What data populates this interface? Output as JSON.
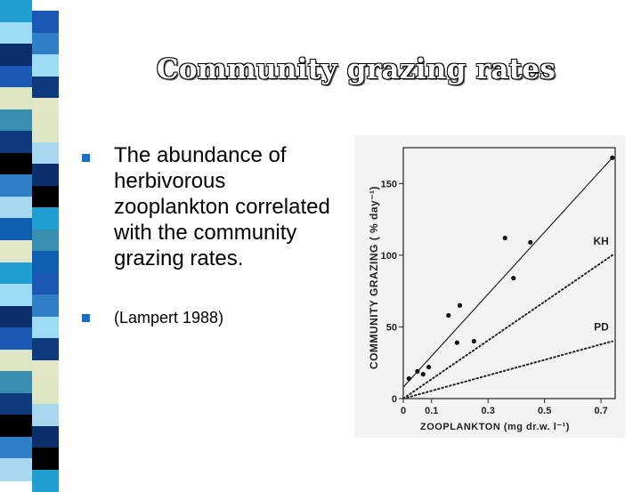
{
  "slide": {
    "title": "Community grazing rates",
    "bullets": [
      "The abundance of herbivorous zooplankton correlated with the community grazing rates.",
      "(Lampert 1988)"
    ]
  },
  "colors": {
    "bullet_marker": "#1a6fc4",
    "strip": [
      "#1f9fd1",
      "#9ddcf4",
      "#0a2f6b",
      "#1b57b5",
      "#dde6c2",
      "#3a8fb0",
      "#0d3a7a",
      "#000000",
      "#2f7fc7",
      "#a8d8f0",
      "#0f5fb0",
      "#e2e6c6"
    ]
  },
  "chart_data": {
    "type": "scatter",
    "xlabel": "ZOOPLANKTON  (mg dr.w. l⁻¹)",
    "ylabel": "COMMUNITY  GRAZING  ( % day⁻¹)",
    "x_ticks": [
      "0",
      "0.1",
      "0.3",
      "0.5",
      "0.7"
    ],
    "y_ticks": [
      "0",
      "50",
      "100",
      "150"
    ],
    "xlim": [
      0,
      0.75
    ],
    "ylim": [
      0,
      175
    ],
    "points": [
      {
        "x": 0.02,
        "y": 14
      },
      {
        "x": 0.05,
        "y": 19
      },
      {
        "x": 0.07,
        "y": 17
      },
      {
        "x": 0.09,
        "y": 22
      },
      {
        "x": 0.16,
        "y": 58
      },
      {
        "x": 0.19,
        "y": 39
      },
      {
        "x": 0.2,
        "y": 65
      },
      {
        "x": 0.25,
        "y": 40
      },
      {
        "x": 0.36,
        "y": 112
      },
      {
        "x": 0.39,
        "y": 84
      },
      {
        "x": 0.45,
        "y": 109
      },
      {
        "x": 0.74,
        "y": 168
      }
    ],
    "lines": [
      {
        "style": "solid",
        "label": "",
        "x": [
          0.0,
          0.74
        ],
        "y": [
          8,
          168
        ]
      },
      {
        "style": "dotted",
        "label": "KH",
        "x": [
          0.0,
          0.74
        ],
        "y": [
          0,
          100
        ]
      },
      {
        "style": "dotted",
        "label": "PD",
        "x": [
          0.0,
          0.74
        ],
        "y": [
          0,
          40
        ]
      }
    ],
    "line_labels": [
      "KH",
      "PD"
    ]
  }
}
